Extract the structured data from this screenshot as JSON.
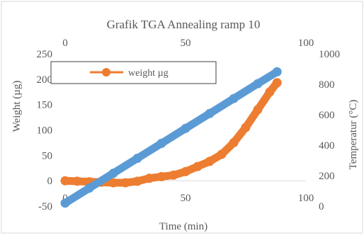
{
  "chart_data": {
    "type": "scatter",
    "title": "Grafik TGA Annealing ramp 10",
    "xlabel": "Time (min)",
    "ylabel": "Weight (µg)",
    "y2label": "Temperatur (°C)",
    "xlim": [
      0,
      100
    ],
    "ylim": [
      -50,
      250
    ],
    "y2lim": [
      0,
      1000
    ],
    "x_ticks": [
      "0",
      "50",
      "100"
    ],
    "x2_ticks": [
      "0",
      "50",
      "100"
    ],
    "y_ticks": [
      "-50",
      "0",
      "50",
      "100",
      "150",
      "200",
      "250"
    ],
    "y2_ticks": [
      "0",
      "200",
      "400",
      "600",
      "800",
      "1000"
    ],
    "grid": false,
    "legend_position": "top-left",
    "series": [
      {
        "name": "weight µg",
        "axis": "left",
        "color": "#ED7D31",
        "x": [
          0,
          5,
          10,
          15,
          20,
          25,
          30,
          35,
          40,
          45,
          50,
          55,
          60,
          65,
          70,
          75,
          80,
          85,
          88
        ],
        "y": [
          0,
          -1,
          -2,
          -3,
          -4,
          -4,
          -1,
          5,
          8,
          11,
          18,
          28,
          38,
          52,
          75,
          105,
          140,
          175,
          193
        ]
      },
      {
        "name": "",
        "axis": "right",
        "color": "#5B9BD5",
        "show_in_legend": false,
        "x": [
          0,
          10,
          20,
          30,
          40,
          50,
          60,
          70,
          80,
          88
        ],
        "y": [
          20,
          118,
          216,
          314,
          412,
          510,
          608,
          706,
          804,
          882
        ]
      }
    ]
  }
}
